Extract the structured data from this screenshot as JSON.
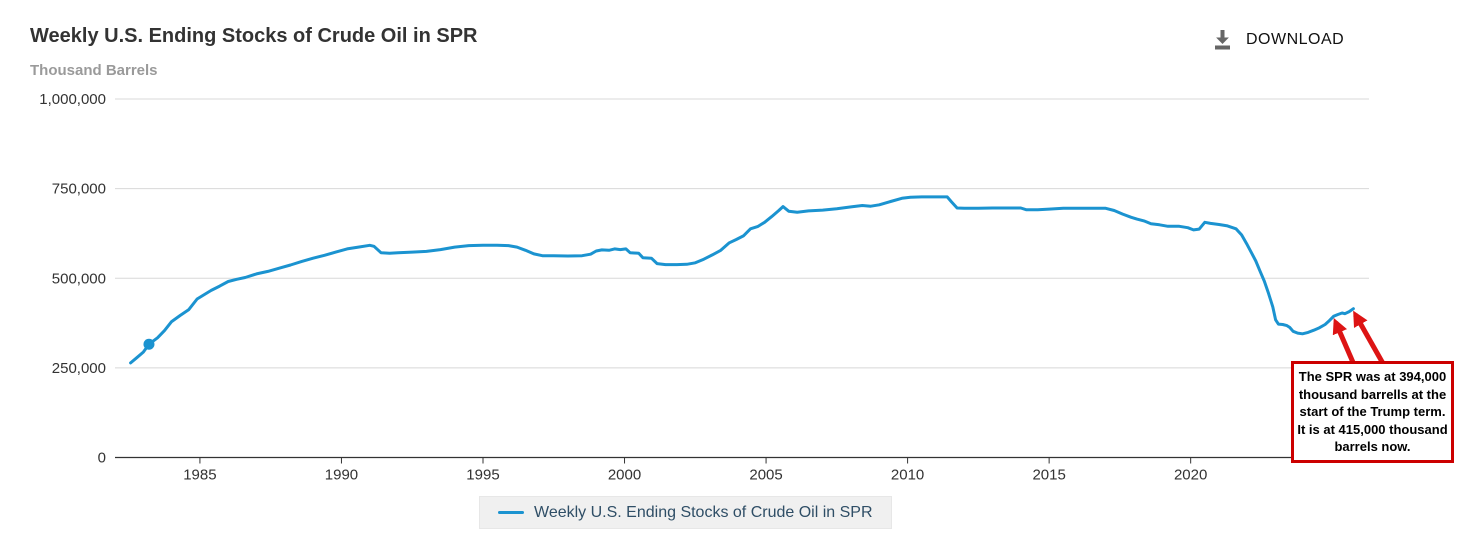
{
  "header": {
    "title": "Weekly U.S. Ending Stocks of Crude Oil in SPR",
    "subtitle": "Thousand Barrels",
    "download_label": "DOWNLOAD"
  },
  "legend": {
    "label": "Weekly U.S. Ending Stocks of Crude Oil in SPR"
  },
  "annotation": {
    "text": "The SPR was at 394,000 thousand barrells at the start of the Trump term. It is at 415,000 thousand barrels now.",
    "border_color": "#cc0000",
    "arrow_color": "#dd1414",
    "arrows": [
      {
        "target_year": 2025.05,
        "target_value": 394000
      },
      {
        "target_year": 2025.75,
        "target_value": 415000
      }
    ]
  },
  "chart_data": {
    "type": "line",
    "title": "Weekly U.S. Ending Stocks of Crude Oil in SPR",
    "xlabel": "",
    "ylabel": "Thousand Barrels",
    "xlim": [
      1982.0,
      2026.3
    ],
    "ylim": [
      0,
      1000000
    ],
    "x_ticks": [
      1985,
      1990,
      1995,
      2000,
      2005,
      2010,
      2015,
      2020
    ],
    "y_ticks": [
      0,
      250000,
      500000,
      750000,
      1000000
    ],
    "grid": true,
    "legend_position": "bottom",
    "line_color": "#1b93d0",
    "grid_color": "#d8d8d8",
    "axis_color": "#333333",
    "marker": {
      "year": 1983.2,
      "value": 316000
    },
    "series": [
      {
        "name": "Weekly U.S. Ending Stocks of Crude Oil in SPR",
        "points": [
          [
            1982.55,
            264000
          ],
          [
            1982.75,
            277000
          ],
          [
            1983.0,
            294000
          ],
          [
            1983.2,
            316000
          ],
          [
            1983.5,
            334000
          ],
          [
            1983.75,
            354000
          ],
          [
            1984.0,
            379000
          ],
          [
            1984.3,
            396000
          ],
          [
            1984.6,
            412000
          ],
          [
            1984.9,
            442000
          ],
          [
            1985.1,
            452000
          ],
          [
            1985.4,
            466000
          ],
          [
            1985.7,
            478000
          ],
          [
            1986.0,
            491000
          ],
          [
            1986.3,
            497000
          ],
          [
            1986.6,
            502000
          ],
          [
            1987.0,
            512000
          ],
          [
            1987.4,
            519000
          ],
          [
            1987.8,
            528000
          ],
          [
            1988.2,
            537000
          ],
          [
            1988.6,
            547000
          ],
          [
            1989.0,
            556000
          ],
          [
            1989.4,
            564000
          ],
          [
            1989.8,
            573000
          ],
          [
            1990.2,
            582000
          ],
          [
            1990.6,
            587000
          ],
          [
            1991.0,
            592000
          ],
          [
            1991.15,
            589000
          ],
          [
            1991.4,
            571000
          ],
          [
            1991.7,
            570000
          ],
          [
            1992.0,
            571000
          ],
          [
            1992.5,
            573000
          ],
          [
            1993.0,
            575000
          ],
          [
            1993.5,
            580000
          ],
          [
            1994.0,
            587000
          ],
          [
            1994.5,
            591000
          ],
          [
            1995.0,
            592000
          ],
          [
            1995.5,
            592000
          ],
          [
            1995.9,
            591000
          ],
          [
            1996.2,
            587000
          ],
          [
            1996.5,
            578000
          ],
          [
            1996.8,
            568000
          ],
          [
            1997.1,
            563000
          ],
          [
            1997.5,
            563000
          ],
          [
            1998.0,
            562000
          ],
          [
            1998.5,
            563000
          ],
          [
            1998.8,
            567000
          ],
          [
            1999.0,
            576000
          ],
          [
            1999.2,
            579000
          ],
          [
            1999.45,
            578000
          ],
          [
            1999.65,
            582000
          ],
          [
            1999.85,
            580000
          ],
          [
            2000.05,
            582000
          ],
          [
            2000.2,
            571000
          ],
          [
            2000.5,
            570000
          ],
          [
            2000.65,
            557000
          ],
          [
            2000.95,
            556000
          ],
          [
            2001.15,
            541000
          ],
          [
            2001.45,
            538000
          ],
          [
            2001.85,
            538000
          ],
          [
            2002.2,
            539000
          ],
          [
            2002.5,
            543000
          ],
          [
            2002.8,
            553000
          ],
          [
            2003.1,
            565000
          ],
          [
            2003.4,
            578000
          ],
          [
            2003.7,
            599000
          ],
          [
            2003.95,
            608000
          ],
          [
            2004.2,
            618000
          ],
          [
            2004.45,
            638000
          ],
          [
            2004.7,
            644000
          ],
          [
            2004.95,
            656000
          ],
          [
            2005.2,
            672000
          ],
          [
            2005.45,
            689000
          ],
          [
            2005.6,
            700000
          ],
          [
            2005.8,
            687000
          ],
          [
            2006.1,
            684000
          ],
          [
            2006.5,
            688000
          ],
          [
            2007.0,
            690000
          ],
          [
            2007.5,
            694000
          ],
          [
            2008.0,
            699000
          ],
          [
            2008.4,
            703000
          ],
          [
            2008.7,
            701000
          ],
          [
            2009.0,
            705000
          ],
          [
            2009.4,
            714000
          ],
          [
            2009.8,
            723000
          ],
          [
            2010.1,
            726000
          ],
          [
            2010.5,
            727000
          ],
          [
            2011.0,
            727000
          ],
          [
            2011.4,
            727000
          ],
          [
            2011.55,
            713000
          ],
          [
            2011.75,
            696000
          ],
          [
            2012.0,
            695000
          ],
          [
            2012.5,
            695000
          ],
          [
            2013.0,
            696000
          ],
          [
            2013.5,
            696000
          ],
          [
            2014.0,
            696000
          ],
          [
            2014.2,
            691000
          ],
          [
            2014.6,
            691000
          ],
          [
            2015.0,
            693000
          ],
          [
            2015.5,
            695000
          ],
          [
            2016.0,
            695000
          ],
          [
            2016.5,
            695000
          ],
          [
            2017.0,
            695000
          ],
          [
            2017.3,
            689000
          ],
          [
            2017.6,
            679000
          ],
          [
            2017.9,
            670000
          ],
          [
            2018.1,
            665000
          ],
          [
            2018.35,
            660000
          ],
          [
            2018.6,
            652000
          ],
          [
            2018.9,
            649000
          ],
          [
            2019.2,
            645000
          ],
          [
            2019.6,
            645000
          ],
          [
            2019.9,
            641000
          ],
          [
            2020.1,
            635000
          ],
          [
            2020.3,
            637000
          ],
          [
            2020.5,
            656000
          ],
          [
            2020.7,
            653000
          ],
          [
            2021.0,
            650000
          ],
          [
            2021.3,
            646000
          ],
          [
            2021.6,
            638000
          ],
          [
            2021.8,
            621000
          ],
          [
            2022.0,
            593000
          ],
          [
            2022.15,
            571000
          ],
          [
            2022.3,
            548000
          ],
          [
            2022.45,
            520000
          ],
          [
            2022.6,
            492000
          ],
          [
            2022.75,
            458000
          ],
          [
            2022.9,
            420000
          ],
          [
            2023.0,
            384000
          ],
          [
            2023.1,
            372000
          ],
          [
            2023.25,
            371000
          ],
          [
            2023.4,
            368000
          ],
          [
            2023.5,
            363000
          ],
          [
            2023.62,
            352000
          ],
          [
            2023.78,
            347000
          ],
          [
            2023.95,
            345000
          ],
          [
            2024.15,
            349000
          ],
          [
            2024.35,
            355000
          ],
          [
            2024.55,
            362000
          ],
          [
            2024.75,
            371000
          ],
          [
            2024.9,
            382000
          ],
          [
            2025.05,
            394000
          ],
          [
            2025.2,
            399000
          ],
          [
            2025.35,
            403000
          ],
          [
            2025.45,
            401000
          ],
          [
            2025.6,
            407000
          ],
          [
            2025.75,
            415000
          ]
        ]
      }
    ]
  }
}
